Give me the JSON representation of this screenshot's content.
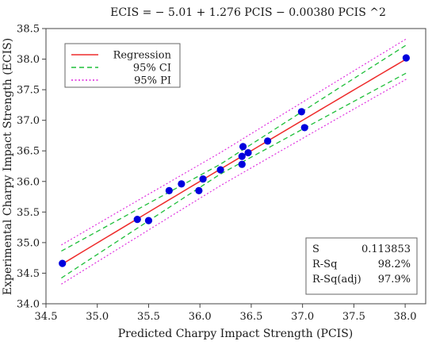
{
  "chart_data": {
    "type": "scatter",
    "title": "ECIS = − 5.01 + 1.276 PCIS − 0.00380 PCIS ^2",
    "xlabel": "Predicted Charpy Impact Strength (PCIS)",
    "ylabel": "Experimental Charpy Impact Strength (ECIS)",
    "xlim": [
      34.5,
      38.2
    ],
    "ylim": [
      34.0,
      38.5
    ],
    "x_ticks": [
      "34.5",
      "35.0",
      "35.5",
      "36.0",
      "36.5",
      "37.0",
      "37.5",
      "38.0"
    ],
    "y_ticks": [
      "34.0",
      "34.5",
      "35.0",
      "35.5",
      "36.0",
      "36.5",
      "37.0",
      "37.5",
      "38.0",
      "38.5"
    ],
    "grid": false,
    "legend_position": "top-left",
    "regression": {
      "intercept": -5.01,
      "b1": 1.276,
      "b2": -0.0038,
      "x_range": [
        34.65,
        38.02
      ]
    },
    "ci_halfwidth": {
      "x": [
        34.65,
        36.2,
        38.02
      ],
      "y": [
        0.22,
        0.08,
        0.23
      ]
    },
    "pi_halfwidth": {
      "x": [
        34.65,
        36.2,
        38.02
      ],
      "y": [
        0.32,
        0.27,
        0.33
      ]
    },
    "points": [
      {
        "x": 34.66,
        "y": 34.66
      },
      {
        "x": 35.39,
        "y": 35.38
      },
      {
        "x": 35.5,
        "y": 35.36
      },
      {
        "x": 35.7,
        "y": 35.85
      },
      {
        "x": 35.82,
        "y": 35.96
      },
      {
        "x": 35.99,
        "y": 35.85
      },
      {
        "x": 36.03,
        "y": 36.04
      },
      {
        "x": 36.2,
        "y": 36.19
      },
      {
        "x": 36.41,
        "y": 36.28
      },
      {
        "x": 36.41,
        "y": 36.41
      },
      {
        "x": 36.42,
        "y": 36.57
      },
      {
        "x": 36.47,
        "y": 36.47
      },
      {
        "x": 36.66,
        "y": 36.66
      },
      {
        "x": 36.99,
        "y": 37.14
      },
      {
        "x": 37.02,
        "y": 36.88
      },
      {
        "x": 38.01,
        "y": 38.02
      }
    ],
    "legend": [
      {
        "label": "Regression",
        "color": "#ee2b2b",
        "dash": "solid"
      },
      {
        "label": "95% CI",
        "color": "#1fbf3a",
        "dash": "dashed"
      },
      {
        "label": "95% PI",
        "color": "#dd22dd",
        "dash": "dotted"
      }
    ],
    "stats": [
      {
        "label": "S",
        "value": "0.113853"
      },
      {
        "label": "R-Sq",
        "value": "98.2%"
      },
      {
        "label": "R-Sq(adj)",
        "value": "97.9%"
      }
    ],
    "colors": {
      "points": "#0000dd",
      "axes": "#444444"
    }
  }
}
